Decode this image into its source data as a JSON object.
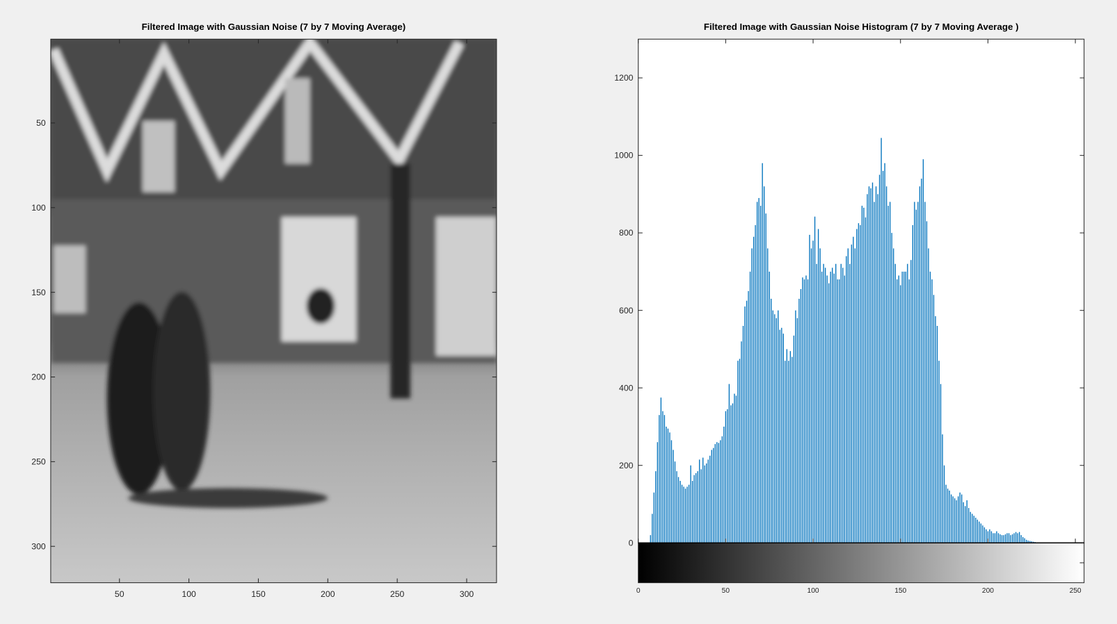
{
  "chart_data": [
    {
      "type": "image",
      "title": "Filtered Image with Gaussian Noise (7 by 7 Moving Average)",
      "xlim": [
        0.5,
        321.5
      ],
      "ylim": [
        0.5,
        321.5
      ],
      "reverse_y": true,
      "xticks": [
        50,
        100,
        150,
        200,
        250,
        300
      ],
      "yticks": [
        50,
        100,
        150,
        200,
        250,
        300
      ]
    },
    {
      "type": "histogram",
      "title": "Filtered Image with Gaussian Noise Histogram (7 by 7 Moving Average )",
      "color": "#0072bd",
      "colorbar": true,
      "xlim": [
        0,
        255
      ],
      "ylim": [
        0,
        1300
      ],
      "xticks": [
        0,
        50,
        100,
        150,
        200,
        250
      ],
      "yticks": [
        0,
        200,
        400,
        600,
        800,
        1000,
        1200
      ],
      "x": [
        0,
        1,
        2,
        3,
        4,
        5,
        6,
        7,
        8,
        9,
        10,
        11,
        12,
        13,
        14,
        15,
        16,
        17,
        18,
        19,
        20,
        21,
        22,
        23,
        24,
        25,
        26,
        27,
        28,
        29,
        30,
        31,
        32,
        33,
        34,
        35,
        36,
        37,
        38,
        39,
        40,
        41,
        42,
        43,
        44,
        45,
        46,
        47,
        48,
        49,
        50,
        51,
        52,
        53,
        54,
        55,
        56,
        57,
        58,
        59,
        60,
        61,
        62,
        63,
        64,
        65,
        66,
        67,
        68,
        69,
        70,
        71,
        72,
        73,
        74,
        75,
        76,
        77,
        78,
        79,
        80,
        81,
        82,
        83,
        84,
        85,
        86,
        87,
        88,
        89,
        90,
        91,
        92,
        93,
        94,
        95,
        96,
        97,
        98,
        99,
        100,
        101,
        102,
        103,
        104,
        105,
        106,
        107,
        108,
        109,
        110,
        111,
        112,
        113,
        114,
        115,
        116,
        117,
        118,
        119,
        120,
        121,
        122,
        123,
        124,
        125,
        126,
        127,
        128,
        129,
        130,
        131,
        132,
        133,
        134,
        135,
        136,
        137,
        138,
        139,
        140,
        141,
        142,
        143,
        144,
        145,
        146,
        147,
        148,
        149,
        150,
        151,
        152,
        153,
        154,
        155,
        156,
        157,
        158,
        159,
        160,
        161,
        162,
        163,
        164,
        165,
        166,
        167,
        168,
        169,
        170,
        171,
        172,
        173,
        174,
        175,
        176,
        177,
        178,
        179,
        180,
        181,
        182,
        183,
        184,
        185,
        186,
        187,
        188,
        189,
        190,
        191,
        192,
        193,
        194,
        195,
        196,
        197,
        198,
        199,
        200,
        201,
        202,
        203,
        204,
        205,
        206,
        207,
        208,
        209,
        210,
        211,
        212,
        213,
        214,
        215,
        216,
        217,
        218,
        219,
        220,
        221,
        222,
        223,
        224,
        225,
        226,
        227,
        228,
        229,
        230,
        231,
        232,
        233,
        234,
        235,
        236,
        237,
        238,
        239,
        240,
        241,
        242,
        243,
        244,
        245,
        246,
        247,
        248,
        249,
        250,
        251,
        252,
        253,
        254,
        255
      ],
      "values": [
        0,
        0,
        0,
        0,
        0,
        0,
        0,
        20,
        75,
        130,
        185,
        260,
        330,
        375,
        340,
        330,
        300,
        295,
        285,
        265,
        240,
        210,
        185,
        170,
        160,
        150,
        145,
        140,
        145,
        150,
        200,
        160,
        175,
        180,
        185,
        215,
        190,
        220,
        200,
        205,
        215,
        225,
        240,
        245,
        255,
        260,
        258,
        265,
        275,
        300,
        340,
        345,
        410,
        355,
        360,
        385,
        380,
        470,
        475,
        520,
        560,
        610,
        625,
        650,
        700,
        760,
        790,
        820,
        880,
        890,
        870,
        980,
        920,
        850,
        760,
        700,
        630,
        600,
        590,
        580,
        600,
        550,
        555,
        540,
        470,
        500,
        470,
        495,
        480,
        535,
        600,
        580,
        630,
        655,
        685,
        680,
        690,
        680,
        795,
        760,
        780,
        842,
        720,
        810,
        760,
        700,
        720,
        710,
        690,
        670,
        700,
        710,
        695,
        720,
        680,
        680,
        720,
        710,
        690,
        740,
        760,
        720,
        770,
        790,
        760,
        810,
        825,
        820,
        870,
        865,
        840,
        900,
        920,
        915,
        930,
        880,
        920,
        900,
        950,
        1045,
        960,
        980,
        920,
        870,
        880,
        800,
        760,
        720,
        680,
        690,
        665,
        700,
        700,
        700,
        720,
        680,
        730,
        820,
        880,
        860,
        880,
        920,
        940,
        990,
        880,
        830,
        760,
        700,
        680,
        640,
        585,
        560,
        470,
        410,
        280,
        200,
        150,
        140,
        135,
        125,
        120,
        115,
        110,
        120,
        130,
        125,
        105,
        95,
        110,
        90,
        80,
        75,
        70,
        65,
        60,
        55,
        50,
        45,
        40,
        35,
        30,
        35,
        30,
        25,
        25,
        30,
        25,
        22,
        20,
        20,
        22,
        25,
        25,
        20,
        22,
        25,
        28,
        25,
        28,
        20,
        15,
        12,
        8,
        6,
        5,
        4,
        3,
        2,
        1,
        0,
        0,
        0,
        0,
        0,
        0,
        0,
        0,
        0,
        0,
        0,
        0,
        0,
        0,
        0,
        0,
        0,
        0,
        0,
        0,
        0,
        0,
        0,
        0,
        0,
        0,
        0
      ]
    }
  ]
}
